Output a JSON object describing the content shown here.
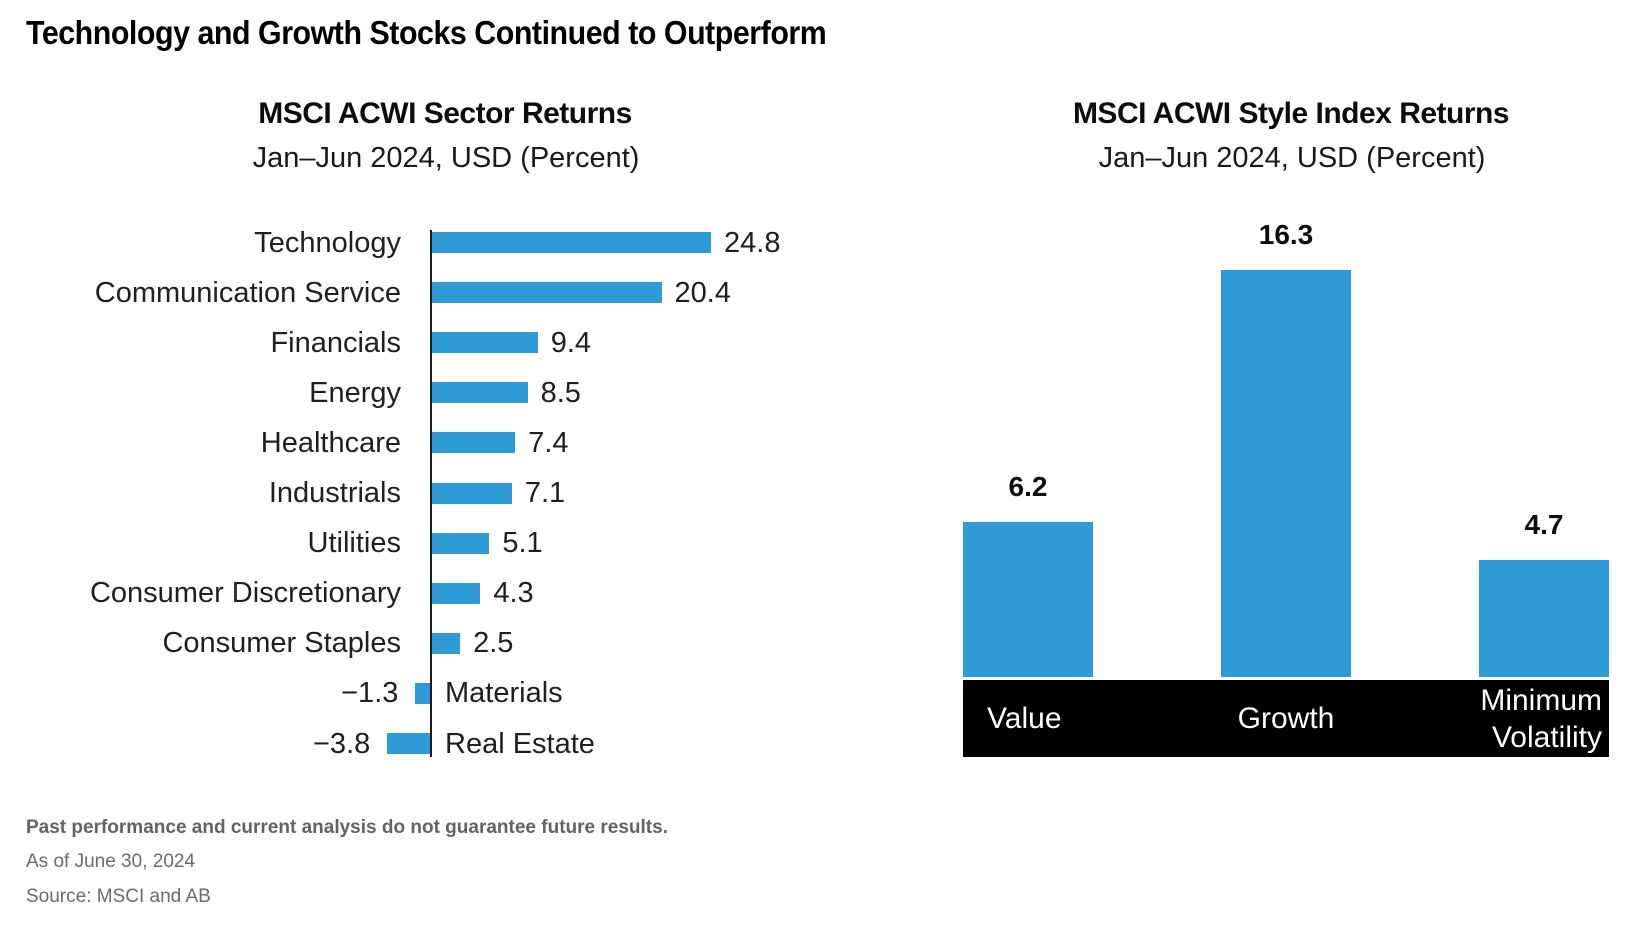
{
  "title": "Technology and Growth Stocks Continued to Outperform",
  "chart_data": [
    {
      "type": "bar",
      "orientation": "horizontal",
      "title": "MSCI ACWI Sector Returns",
      "subtitle": "Jan–Jun 2024, USD (Percent)",
      "categories": [
        "Technology",
        "Communication Service",
        "Financials",
        "Energy",
        "Healthcare",
        "Industrials",
        "Utilities",
        "Consumer Discretionary",
        "Consumer Staples",
        "Materials",
        "Real Estate"
      ],
      "values": [
        24.8,
        20.4,
        9.4,
        8.5,
        7.4,
        7.1,
        5.1,
        4.3,
        2.5,
        -1.3,
        -3.8
      ],
      "value_labels": [
        "24.8",
        "20.4",
        "9.4",
        "8.5",
        "7.4",
        "7.1",
        "5.1",
        "4.3",
        "2.5",
        "−1.3",
        "−3.8"
      ],
      "bar_color": "#2E9BD6",
      "axis_color": "#1A1A1A",
      "grid": false,
      "legend": "none"
    },
    {
      "type": "bar",
      "orientation": "vertical",
      "title": "MSCI ACWI Style Index Returns",
      "subtitle": "Jan–Jun 2024, USD (Percent)",
      "categories": [
        "Value",
        "Growth",
        "Minimum Volatility"
      ],
      "values": [
        6.2,
        16.3,
        4.7
      ],
      "value_labels": [
        "6.2",
        "16.3",
        "4.7"
      ],
      "bar_color": "#2E9BD6",
      "category_band_color": "#000000",
      "category_text_color": "#FFFFFF",
      "grid": false,
      "legend": "none"
    }
  ],
  "footer": {
    "disclaimer": "Past performance and current analysis do not guarantee future results.",
    "as_of": "As of June 30, 2024",
    "source": "Source: MSCI and AB"
  },
  "colors": {
    "accent": "#2E9BD6",
    "band": "#000000",
    "text": "#1A1A1A",
    "footer_text": "#6B6B6B"
  }
}
